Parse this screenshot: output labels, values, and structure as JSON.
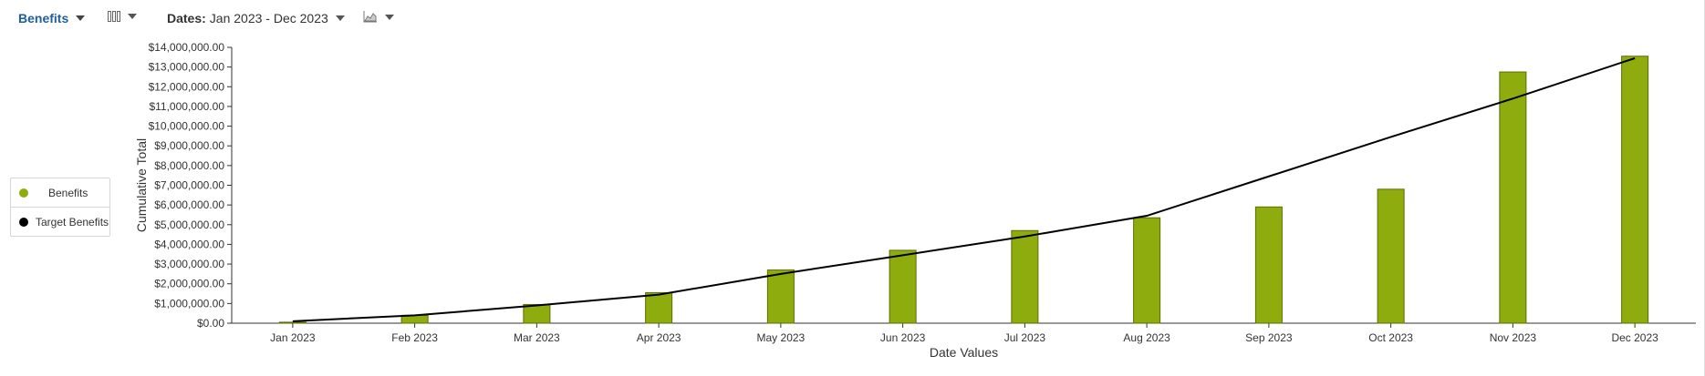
{
  "toolbar": {
    "benefits_label": "Benefits",
    "dates_label": "Dates:",
    "dates_value": "Jan 2023 - Dec 2023",
    "columns_icon": "columns-icon",
    "chart_type_icon": "area-chart-icon"
  },
  "legend": {
    "items": [
      {
        "label": "Benefits",
        "color": "#8fac0e"
      },
      {
        "label": "Target Benefits",
        "color": "#000000"
      }
    ]
  },
  "colors": {
    "bar_fill": "#8fac0e",
    "bar_stroke": "#5a6e00",
    "line": "#000000",
    "accent": "#1f5f9e"
  },
  "chart_data": {
    "type": "bar",
    "categories": [
      "Jan 2023",
      "Feb 2023",
      "Mar 2023",
      "Apr 2023",
      "May 2023",
      "Jun 2023",
      "Jul 2023",
      "Aug 2023",
      "Sep 2023",
      "Oct 2023",
      "Nov 2023",
      "Dec 2023"
    ],
    "series": [
      {
        "name": "Benefits",
        "type": "bar",
        "values": [
          50000,
          400000,
          950000,
          1550000,
          2700000,
          3700000,
          4700000,
          5350000,
          5900000,
          6800000,
          12750000,
          13550000
        ]
      },
      {
        "name": "Target Benefits",
        "type": "line",
        "values": [
          100000,
          400000,
          900000,
          1450000,
          2500000,
          3450000,
          4400000,
          5450000,
          7450000,
          9450000,
          11400000,
          13450000
        ]
      }
    ],
    "xlabel": "Date Values",
    "ylabel": "Cumulative Total",
    "ylim": [
      0,
      14000000
    ],
    "yticks": [
      "$0.00",
      "$1,000,000.00",
      "$2,000,000.00",
      "$3,000,000.00",
      "$4,000,000.00",
      "$5,000,000.00",
      "$6,000,000.00",
      "$7,000,000.00",
      "$8,000,000.00",
      "$9,000,000.00",
      "$10,000,000.00",
      "$11,000,000.00",
      "$12,000,000.00",
      "$13,000,000.00",
      "$14,000,000.00"
    ],
    "grid": false,
    "legend_position": "left"
  }
}
